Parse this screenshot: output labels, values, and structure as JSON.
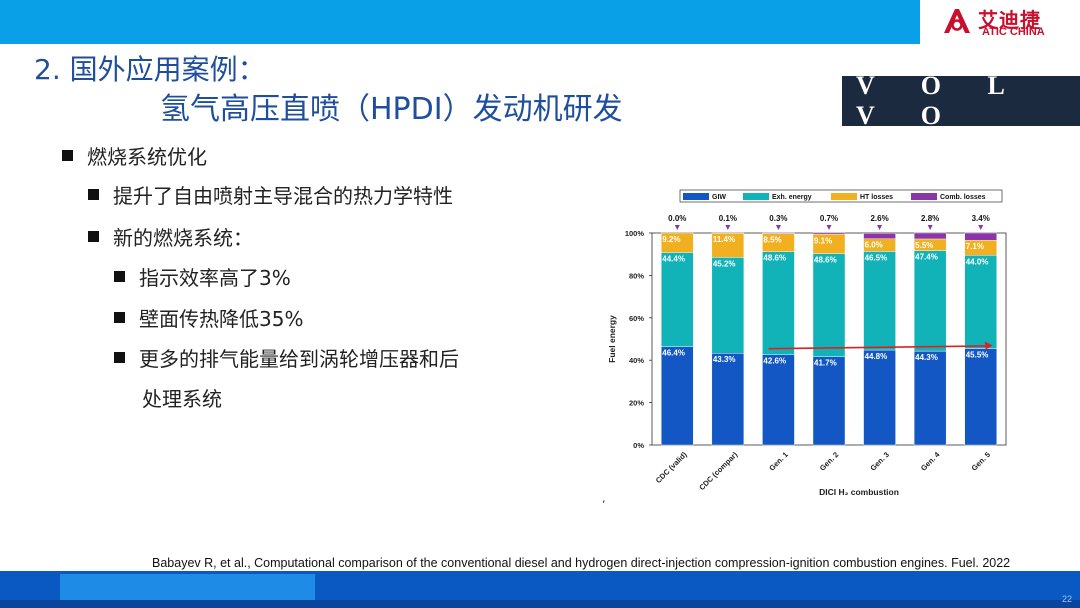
{
  "brand": {
    "name_cn": "艾迪捷",
    "name_en": "ATIC CHINA",
    "icon": "atic-logo-icon",
    "color": "#c8102e"
  },
  "slide": {
    "title_line1": "2. 国外应用案例：",
    "title_line2": "氢气高压直喷（HPDI）发动机研发",
    "partner_logo": "V O L V O",
    "bullets": {
      "b1": "燃烧系统优化",
      "b2": "提升了自由喷射主导混合的热力学特性",
      "b3": "新的燃烧系统：",
      "b4": "指示效率高了3%",
      "b5": "壁面传热降低35%",
      "b6": "更多的排气能量给到涡轮增压器和后",
      "b6_cont": "处理系统"
    },
    "reference": "Babayev R, et al., Computational comparison of the conventional diesel and hydrogen direct-injection compression-ignition combustion engines. Fuel. 2022",
    "stray_mark": ",",
    "page_number": "22",
    "colors": {
      "topbar": "#0aa0e8",
      "title": "#1f4e9c",
      "footer": "#0a58c2"
    }
  },
  "chart_data": {
    "type": "bar",
    "stacked": true,
    "categories": [
      "CDC (valid)",
      "CDC (compar)",
      "Gen. 1",
      "Gen. 2",
      "Gen. 3",
      "Gen. 4",
      "Gen. 5"
    ],
    "series": [
      {
        "name": "GIW",
        "color": "#1257c4",
        "values": [
          46.4,
          43.3,
          42.6,
          41.7,
          44.8,
          44.3,
          45.5
        ],
        "labels": [
          "46.4%",
          "43.3%",
          "42.6%",
          "41.7%",
          "44.8%",
          "44.3%",
          "45.5%"
        ]
      },
      {
        "name": "Exh. energy",
        "color": "#12b3b8",
        "values": [
          44.4,
          45.2,
          48.6,
          48.6,
          46.5,
          47.4,
          44.0
        ],
        "labels": [
          "44.4%",
          "45.2%",
          "48.6%",
          "48.6%",
          "46.5%",
          "47.4%",
          "44.0%"
        ]
      },
      {
        "name": "HT losses",
        "color": "#f0b020",
        "values": [
          9.2,
          11.4,
          8.5,
          9.1,
          6.0,
          5.5,
          7.1
        ],
        "labels": [
          "9.2%",
          "11.4%",
          "8.5%",
          "9.1%",
          "6.0%",
          "5.5%",
          "7.1%"
        ]
      },
      {
        "name": "Comb. losses",
        "color": "#8a35a8",
        "values": [
          0.0,
          0.1,
          0.3,
          0.7,
          2.6,
          2.8,
          3.4
        ],
        "labels": [
          "0.0%",
          "0.1%",
          "0.3%",
          "0.7%",
          "2.6%",
          "2.8%",
          "3.4%"
        ]
      }
    ],
    "ylabel": "Fuel energy",
    "xlabel": "DICI H₂ combustion",
    "ylim": [
      0,
      100
    ],
    "yticks": [
      "0%",
      "20%",
      "40%",
      "60%",
      "80%",
      "100%"
    ],
    "legend_position": "top",
    "annotation": "red arrow from Gen. 1 GIW to Gen. 5 GIW",
    "annotation_color": "#e02020"
  }
}
